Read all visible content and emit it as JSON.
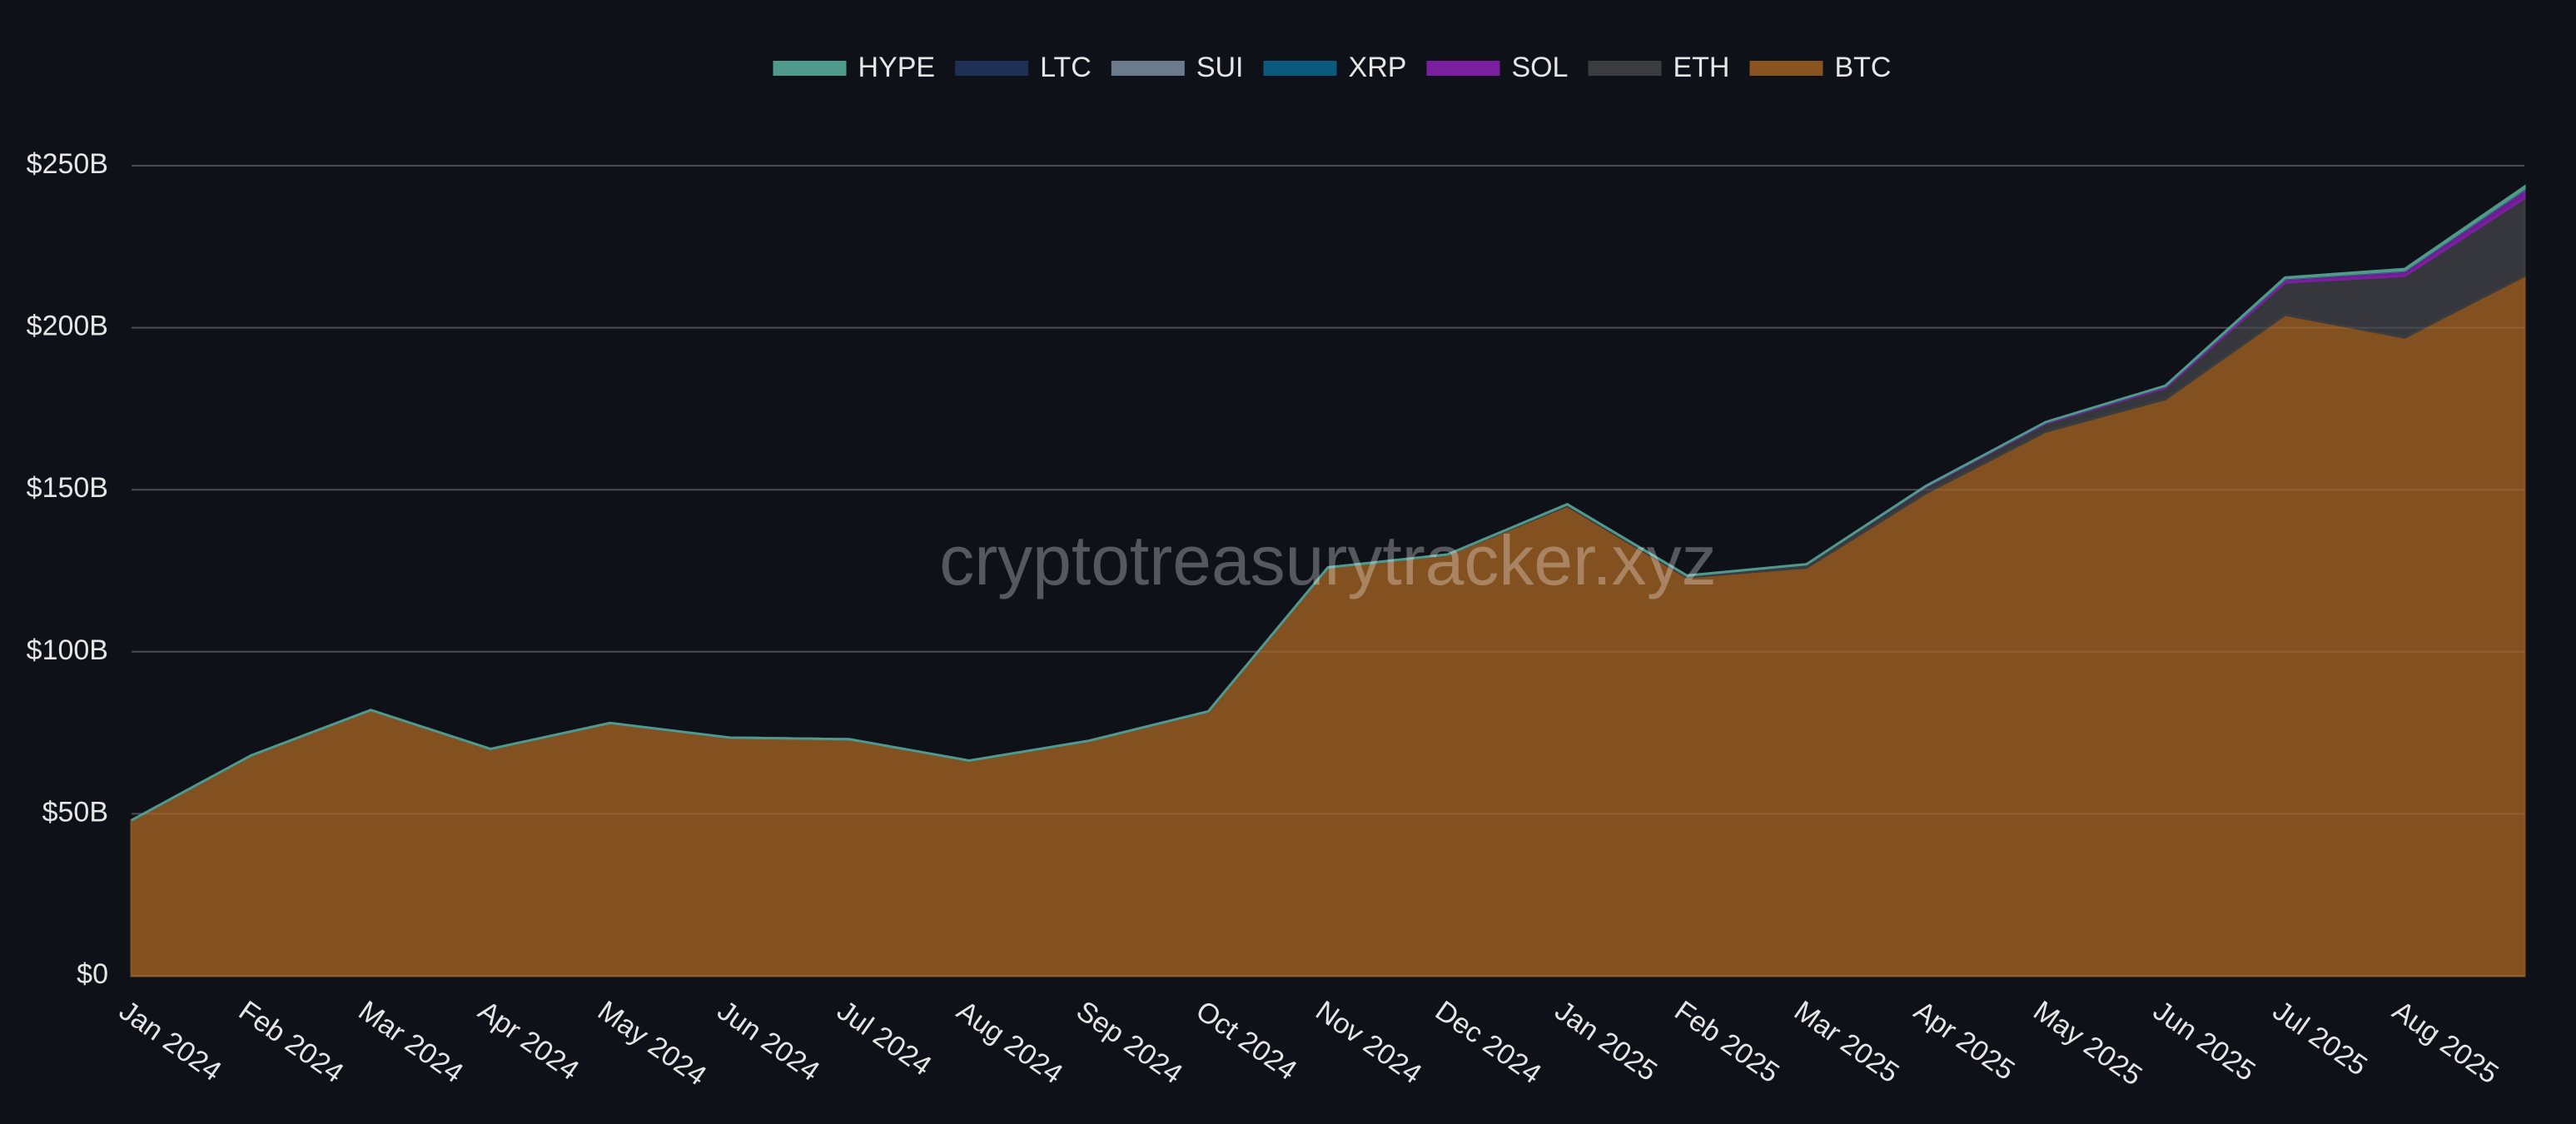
{
  "chart_data": {
    "type": "stacked_area",
    "watermark": "cryptotreasurytracker.xyz",
    "categories": [
      "Jan 2024",
      "Feb 2024",
      "Mar 2024",
      "Apr 2024",
      "May 2024",
      "Jun 2024",
      "Jul 2024",
      "Aug 2024",
      "Sep 2024",
      "Oct 2024",
      "Nov 2024",
      "Dec 2024",
      "Jan 2025",
      "Feb 2025",
      "Mar 2025",
      "Apr 2025",
      "May 2025",
      "Jun 2025",
      "Jul 2025",
      "Aug 2025",
      null
    ],
    "series": [
      {
        "name": "HYPE",
        "color": "#4f9a8a",
        "values": [
          0,
          0,
          0,
          0,
          0,
          0,
          0,
          0,
          0,
          0,
          0,
          0,
          0,
          0,
          0,
          0,
          0,
          0,
          0.2,
          0.3,
          0.5
        ]
      },
      {
        "name": "LTC",
        "color": "#1f2f55",
        "values": [
          0,
          0,
          0,
          0,
          0,
          0,
          0,
          0,
          0,
          0,
          0,
          0,
          0,
          0,
          0,
          0,
          0.1,
          0.1,
          0.1,
          0.1,
          0.1
        ]
      },
      {
        "name": "SUI",
        "color": "#6b7a8c",
        "values": [
          0,
          0,
          0,
          0,
          0,
          0,
          0,
          0,
          0,
          0,
          0,
          0,
          0,
          0,
          0,
          0,
          0,
          0,
          0.1,
          0.1,
          0.2
        ]
      },
      {
        "name": "XRP",
        "color": "#0b5a7d",
        "values": [
          0,
          0,
          0,
          0,
          0,
          0,
          0,
          0,
          0,
          0,
          0,
          0,
          0,
          0,
          0,
          0,
          0,
          0,
          0.1,
          0.1,
          0.2
        ]
      },
      {
        "name": "SOL",
        "color": "#7a1fa0",
        "values": [
          0,
          0,
          0,
          0,
          0,
          0,
          0,
          0,
          0,
          0,
          0,
          0,
          0,
          0,
          0,
          0.2,
          0.3,
          0.5,
          1,
          1.5,
          2.5
        ]
      },
      {
        "name": "ETH",
        "color": "#3b3c40",
        "values": [
          0,
          0,
          0,
          0,
          0,
          0,
          0,
          0,
          0,
          0,
          0,
          0,
          0.5,
          0.5,
          1,
          2,
          2.5,
          3.5,
          10,
          19,
          24
        ]
      },
      {
        "name": "BTC",
        "color": "#8a5420",
        "values": [
          48,
          68,
          82,
          70,
          78,
          73.5,
          73,
          66.4,
          72.5,
          81.6,
          126,
          130,
          145,
          123,
          126,
          149,
          168,
          178,
          204,
          197,
          216
        ]
      }
    ],
    "ylim": [
      0,
      250
    ],
    "yticks": [
      {
        "value": 0,
        "label": "$0"
      },
      {
        "value": 50,
        "label": "$50B"
      },
      {
        "value": 100,
        "label": "$100B"
      },
      {
        "value": 150,
        "label": "$150B"
      },
      {
        "value": 200,
        "label": "$200B"
      },
      {
        "value": 250,
        "label": "$250B"
      }
    ],
    "grid": true,
    "legend": "top"
  }
}
